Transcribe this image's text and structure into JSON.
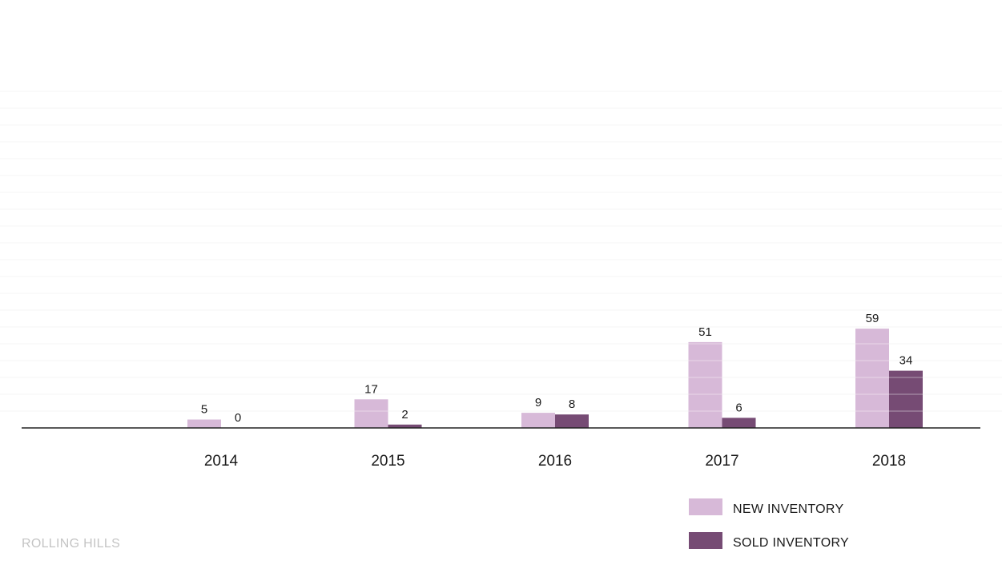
{
  "chart_data": {
    "type": "bar",
    "categories": [
      "2014",
      "2015",
      "2016",
      "2017",
      "2018"
    ],
    "series": [
      {
        "name": "NEW INVENTORY",
        "values": [
          5,
          17,
          9,
          51,
          59
        ],
        "color": "#d7b9d8"
      },
      {
        "name": "SOLD INVENTORY",
        "values": [
          0,
          2,
          8,
          6,
          34
        ],
        "color": "#764b74"
      }
    ],
    "ylim": [
      0,
      200
    ],
    "grid": true,
    "legend_position": "bottom-right"
  },
  "legend": {
    "items": [
      {
        "label": "NEW INVENTORY",
        "color": "#d7b9d8"
      },
      {
        "label": "SOLD INVENTORY",
        "color": "#764b74"
      }
    ]
  },
  "footer": {
    "community_name": "ROLLING HILLS"
  }
}
